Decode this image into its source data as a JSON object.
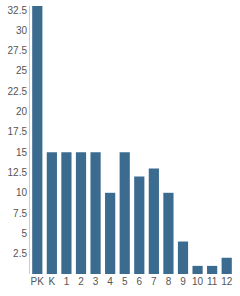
{
  "chart_data": {
    "type": "bar",
    "categories": [
      "PK",
      "K",
      "1",
      "2",
      "3",
      "4",
      "5",
      "6",
      "7",
      "8",
      "9",
      "10",
      "11",
      "12"
    ],
    "values": [
      33,
      15,
      15,
      15,
      15,
      10,
      15,
      12,
      13,
      10,
      4,
      1,
      1,
      2
    ],
    "color": "#3b6b8f",
    "ylim": [
      0,
      33
    ],
    "yticks": [
      2.5,
      5,
      7.5,
      10,
      12.5,
      15,
      17.5,
      20,
      22.5,
      25,
      27.5,
      30,
      32.5
    ],
    "grid": false
  }
}
